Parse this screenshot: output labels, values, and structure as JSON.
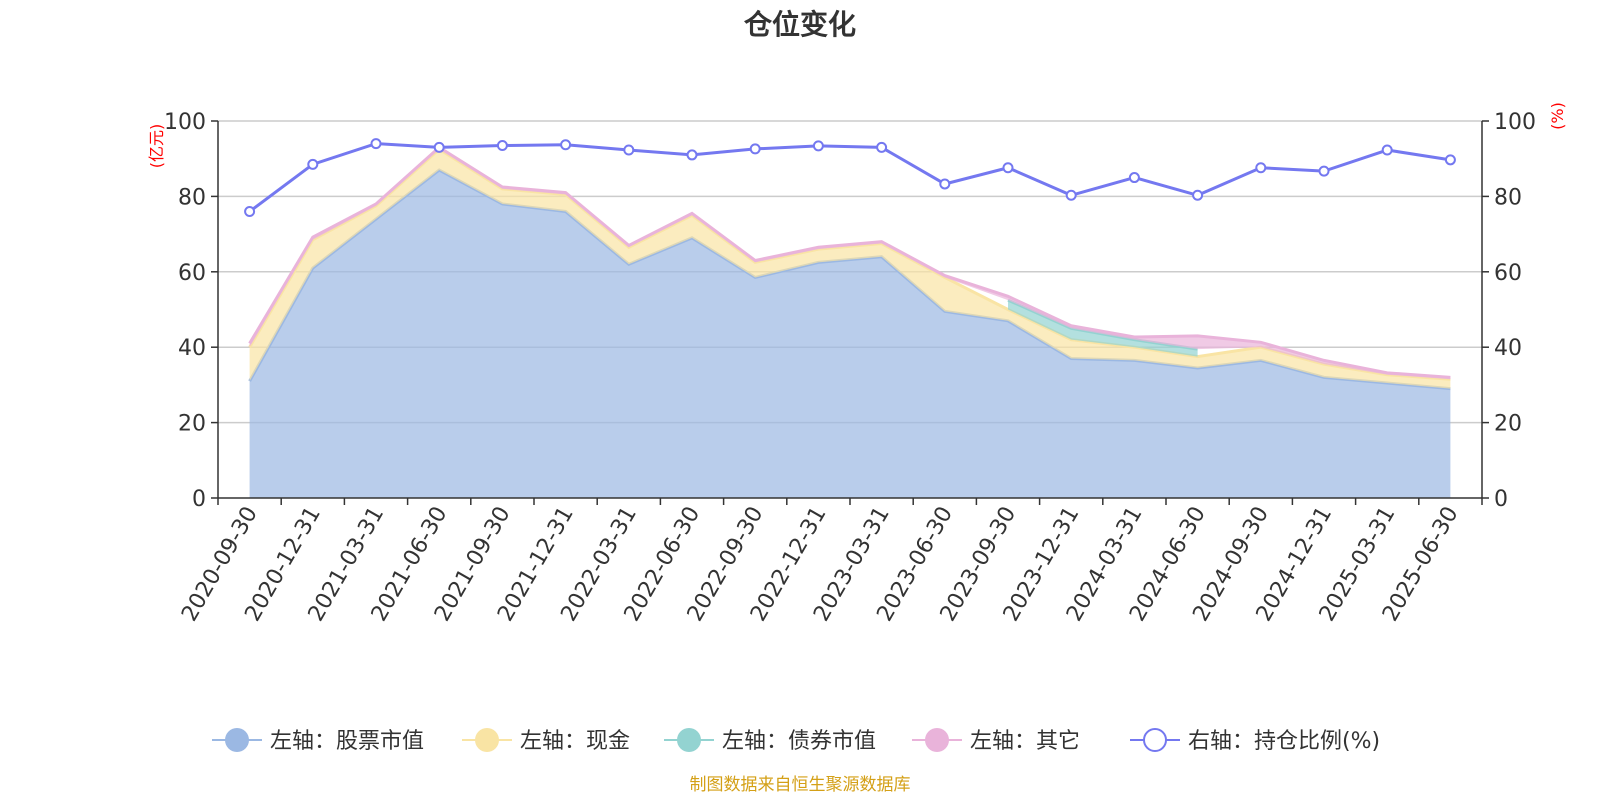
{
  "chart_data": {
    "type": "area",
    "title": "仓位变化",
    "left_axis_unit": "(亿元)",
    "right_axis_unit": "(%)",
    "ylim_left": [
      0,
      100
    ],
    "ylim_right": [
      0,
      100
    ],
    "y_ticks": [
      "0",
      "20",
      "40",
      "60",
      "80",
      "100"
    ],
    "grid": true,
    "legend_position": "bottom",
    "categories": [
      "2020-09-30",
      "2020-12-31",
      "2021-03-31",
      "2021-06-30",
      "2021-09-30",
      "2021-12-31",
      "2022-03-31",
      "2022-06-30",
      "2022-09-30",
      "2022-12-31",
      "2023-03-31",
      "2023-06-30",
      "2023-09-30",
      "2023-12-31",
      "2024-03-31",
      "2024-06-30",
      "2024-09-30",
      "2024-12-31",
      "2025-03-31",
      "2025-06-30"
    ],
    "series": [
      {
        "name": "左轴：股票市值",
        "axis": "left",
        "stack": true,
        "color": "#9bb8e3",
        "values": [
          31,
          61,
          74,
          87,
          78,
          76,
          62,
          69,
          58.5,
          62.5,
          64,
          49.5,
          47,
          37,
          36.5,
          34.5,
          36.5,
          32,
          30.5,
          29
        ]
      },
      {
        "name": "左轴：现金",
        "axis": "left",
        "stack": true,
        "color": "#f9e4a4",
        "values": [
          9,
          7.5,
          3.5,
          5.5,
          4,
          4.5,
          4.5,
          6,
          4,
          3.5,
          3.5,
          9,
          3,
          5,
          3.5,
          3,
          3.5,
          3.5,
          2.2,
          2.5
        ]
      },
      {
        "name": "左轴：债券市值",
        "axis": "left",
        "stack": true,
        "color": "#93d3d1",
        "values": [
          0,
          0,
          0,
          0,
          0,
          0,
          0,
          0,
          0,
          0,
          0,
          0,
          2.5,
          3,
          2,
          2,
          0,
          0,
          0,
          0
        ]
      },
      {
        "name": "左轴：其它",
        "axis": "left",
        "stack": true,
        "color": "#e9b3da",
        "values": [
          1,
          0.7,
          0.5,
          0.5,
          0.5,
          0.5,
          0.5,
          0.5,
          0.5,
          0.5,
          0.5,
          0.5,
          1,
          0.7,
          0.7,
          3.5,
          1.3,
          1,
          0.5,
          0.5
        ]
      },
      {
        "name": "右轴：持仓比例(%)",
        "axis": "right",
        "stack": false,
        "color": "#7478f0",
        "values": [
          76,
          88.5,
          94,
          93,
          93.5,
          93.7,
          92.3,
          91,
          92.6,
          93.4,
          93,
          83.3,
          87.6,
          80.3,
          85,
          80.3,
          87.6,
          86.7,
          92.3,
          89.7
        ]
      }
    ]
  },
  "footer": {
    "source": "制图数据来自恒生聚源数据库"
  }
}
